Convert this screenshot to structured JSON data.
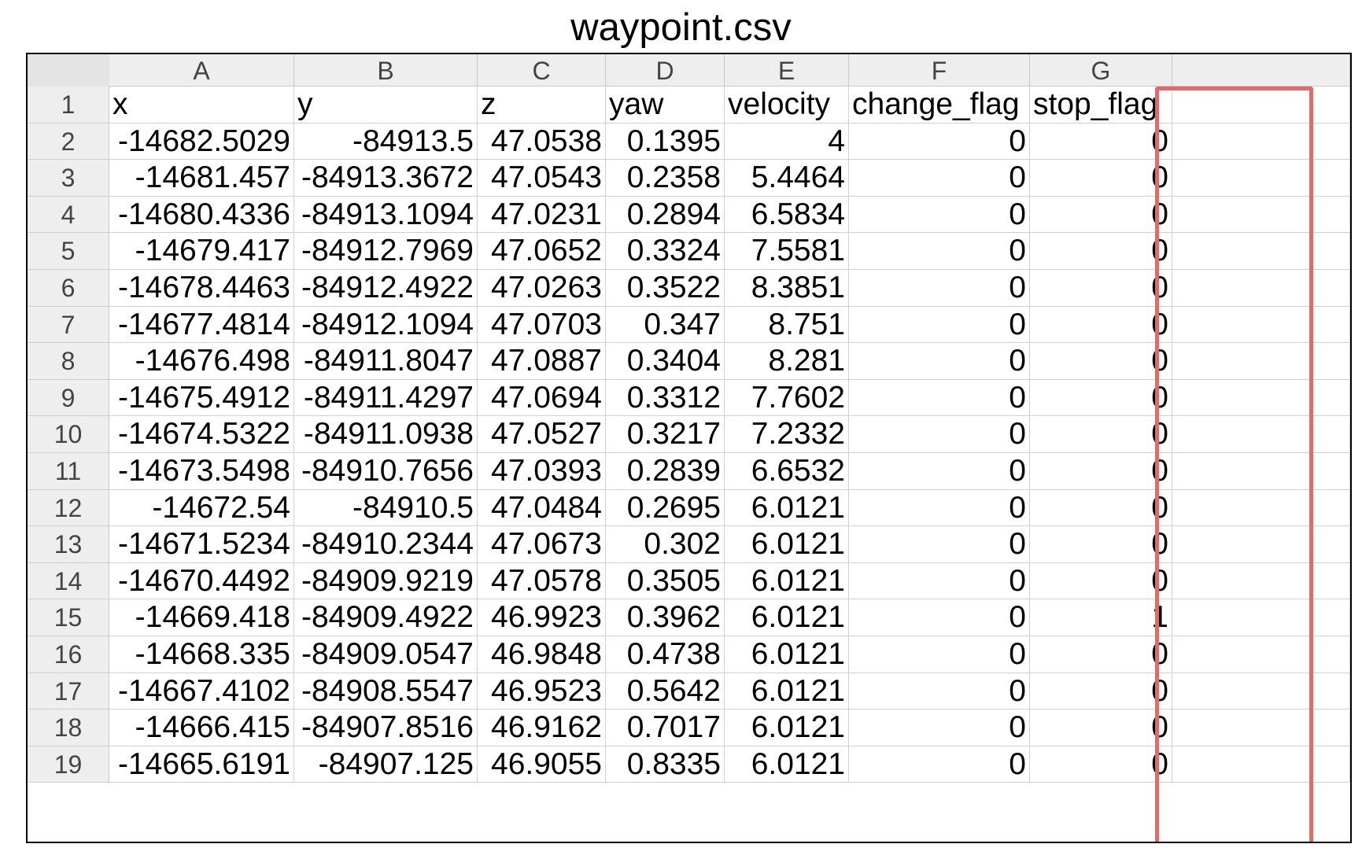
{
  "caption": "waypoint.csv",
  "highlight_color": "#d5706e",
  "columns": [
    "A",
    "B",
    "C",
    "D",
    "E",
    "F",
    "G",
    ""
  ],
  "rows": [
    {
      "num": "1",
      "cells": [
        "x",
        "y",
        "z",
        "yaw",
        "velocity",
        "change_flag",
        "stop_flag"
      ]
    },
    {
      "num": "2",
      "cells": [
        "-14682.5029",
        "-84913.5",
        "47.0538",
        "0.1395",
        "4",
        "0",
        "0"
      ]
    },
    {
      "num": "3",
      "cells": [
        "-14681.457",
        "-84913.3672",
        "47.0543",
        "0.2358",
        "5.4464",
        "0",
        "0"
      ]
    },
    {
      "num": "4",
      "cells": [
        "-14680.4336",
        "-84913.1094",
        "47.0231",
        "0.2894",
        "6.5834",
        "0",
        "0"
      ]
    },
    {
      "num": "5",
      "cells": [
        "-14679.417",
        "-84912.7969",
        "47.0652",
        "0.3324",
        "7.5581",
        "0",
        "0"
      ]
    },
    {
      "num": "6",
      "cells": [
        "-14678.4463",
        "-84912.4922",
        "47.0263",
        "0.3522",
        "8.3851",
        "0",
        "0"
      ]
    },
    {
      "num": "7",
      "cells": [
        "-14677.4814",
        "-84912.1094",
        "47.0703",
        "0.347",
        "8.751",
        "0",
        "0"
      ]
    },
    {
      "num": "8",
      "cells": [
        "-14676.498",
        "-84911.8047",
        "47.0887",
        "0.3404",
        "8.281",
        "0",
        "0"
      ]
    },
    {
      "num": "9",
      "cells": [
        "-14675.4912",
        "-84911.4297",
        "47.0694",
        "0.3312",
        "7.7602",
        "0",
        "0"
      ]
    },
    {
      "num": "10",
      "cells": [
        "-14674.5322",
        "-84911.0938",
        "47.0527",
        "0.3217",
        "7.2332",
        "0",
        "0"
      ]
    },
    {
      "num": "11",
      "cells": [
        "-14673.5498",
        "-84910.7656",
        "47.0393",
        "0.2839",
        "6.6532",
        "0",
        "0"
      ]
    },
    {
      "num": "12",
      "cells": [
        "-14672.54",
        "-84910.5",
        "47.0484",
        "0.2695",
        "6.0121",
        "0",
        "0"
      ]
    },
    {
      "num": "13",
      "cells": [
        "-14671.5234",
        "-84910.2344",
        "47.0673",
        "0.302",
        "6.0121",
        "0",
        "0"
      ]
    },
    {
      "num": "14",
      "cells": [
        "-14670.4492",
        "-84909.9219",
        "47.0578",
        "0.3505",
        "6.0121",
        "0",
        "0"
      ]
    },
    {
      "num": "15",
      "cells": [
        "-14669.418",
        "-84909.4922",
        "46.9923",
        "0.3962",
        "6.0121",
        "0",
        "1"
      ]
    },
    {
      "num": "16",
      "cells": [
        "-14668.335",
        "-84909.0547",
        "46.9848",
        "0.4738",
        "6.0121",
        "0",
        "0"
      ]
    },
    {
      "num": "17",
      "cells": [
        "-14667.4102",
        "-84908.5547",
        "46.9523",
        "0.5642",
        "6.0121",
        "0",
        "0"
      ]
    },
    {
      "num": "18",
      "cells": [
        "-14666.415",
        "-84907.8516",
        "46.9162",
        "0.7017",
        "6.0121",
        "0",
        "0"
      ]
    },
    {
      "num": "19",
      "cells": [
        "-14665.6191",
        "-84907.125",
        "46.9055",
        "0.8335",
        "6.0121",
        "0",
        "0"
      ]
    }
  ]
}
